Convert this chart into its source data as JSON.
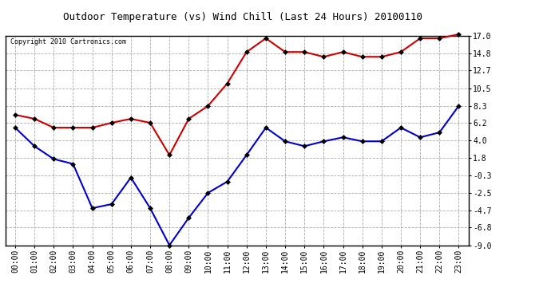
{
  "title": "Outdoor Temperature (vs) Wind Chill (Last 24 Hours) 20100110",
  "copyright": "Copyright 2010 Cartronics.com",
  "hours": [
    "00:00",
    "01:00",
    "02:00",
    "03:00",
    "04:00",
    "05:00",
    "06:00",
    "07:00",
    "08:00",
    "09:00",
    "10:00",
    "11:00",
    "12:00",
    "13:00",
    "14:00",
    "15:00",
    "16:00",
    "17:00",
    "18:00",
    "19:00",
    "20:00",
    "21:00",
    "22:00",
    "23:00"
  ],
  "temp": [
    7.2,
    6.7,
    5.6,
    5.6,
    5.6,
    6.2,
    6.7,
    6.2,
    2.2,
    6.7,
    8.3,
    11.1,
    15.0,
    16.7,
    15.0,
    15.0,
    14.4,
    15.0,
    14.4,
    14.4,
    15.0,
    16.7,
    16.7,
    17.2
  ],
  "windchill": [
    5.6,
    3.3,
    1.7,
    1.1,
    -4.4,
    -3.9,
    -0.6,
    -4.4,
    -9.0,
    -5.6,
    -2.5,
    -1.1,
    2.2,
    5.6,
    3.9,
    3.3,
    3.9,
    4.4,
    3.9,
    3.9,
    5.6,
    4.4,
    5.0,
    8.3
  ],
  "yticks": [
    17.0,
    14.8,
    12.7,
    10.5,
    8.3,
    6.2,
    4.0,
    1.8,
    -0.3,
    -2.5,
    -4.7,
    -6.8,
    -9.0
  ],
  "ymin": -9.0,
  "ymax": 17.0,
  "temp_color": "#cc0000",
  "windchill_color": "#0000cc",
  "grid_color": "#aaaaaa",
  "bg_color": "#ffffff",
  "marker": "D",
  "marker_size": 3,
  "line_width": 1.5,
  "title_fontsize": 9,
  "tick_fontsize": 7,
  "copyright_fontsize": 6
}
